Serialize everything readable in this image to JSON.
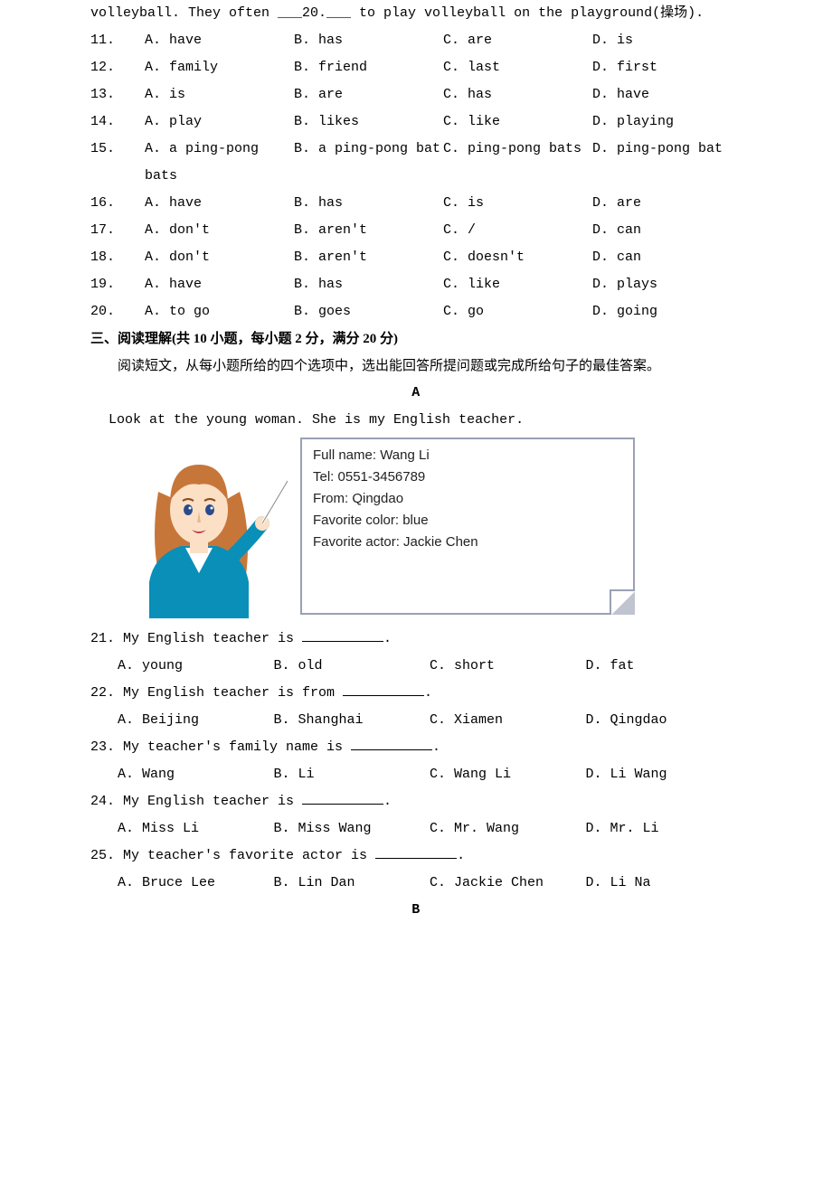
{
  "passage_line": "volleyball. They often ___20.___ to play volleyball on the playground(操场).",
  "cloze": [
    {
      "n": "11.",
      "a": "A. have",
      "b": "B. has",
      "c": "C. are",
      "d": "D. is"
    },
    {
      "n": "12.",
      "a": "A. family",
      "b": "B. friend",
      "c": "C. last",
      "d": "D. first"
    },
    {
      "n": "13.",
      "a": "A. is",
      "b": "B. are",
      "c": "C. has",
      "d": "D. have"
    },
    {
      "n": "14.",
      "a": "A. play",
      "b": "B. likes",
      "c": "C. like",
      "d": "D. playing"
    },
    {
      "n": "15.",
      "a": "A. a ping-pong bats",
      "b": "B. a ping-pong bat",
      "c": "C. ping-pong bats",
      "d": "D. ping-pong bat"
    },
    {
      "n": "16.",
      "a": "A. have",
      "b": "B. has",
      "c": "C. is",
      "d": "D. are"
    },
    {
      "n": "17.",
      "a": "A. don't",
      "b": "B. aren't",
      "c": "C. /",
      "d": "D. can"
    },
    {
      "n": "18.",
      "a": "A. don't",
      "b": "B. aren't",
      "c": "C. doesn't",
      "d": "D. can"
    },
    {
      "n": "19.",
      "a": "A. have",
      "b": "B. has",
      "c": "C. like",
      "d": "D. plays"
    },
    {
      "n": "20.",
      "a": "A. to go",
      "b": "B. goes",
      "c": "C. go",
      "d": "D. going"
    }
  ],
  "section3_heading": "三、阅读理解(共 10 小题，每小题 2 分，满分 20 分)",
  "section3_instruction": "阅读短文，从每小题所给的四个选项中，选出能回答所提问题或完成所给句子的最佳答案。",
  "letterA": "A",
  "readingA_intro": "Look at the young woman. She is my English teacher.",
  "card": {
    "full_name_label": "Full name:",
    "full_name": "Wang Li",
    "tel_label": "Tel:",
    "tel": "0551-3456789",
    "from_label": "From:",
    "from": "Qingdao",
    "fav_color_label": "Favorite color:",
    "fav_color": "blue",
    "fav_actor_label": "Favorite actor:",
    "fav_actor": "Jackie Chen"
  },
  "questionsA": [
    {
      "q": "21. My English teacher is ___________.",
      "a": "A. young",
      "b": "B. old",
      "c": "C. short",
      "d": "D. fat"
    },
    {
      "q": "22. My English teacher is from ___________.",
      "a": "A. Beijing",
      "b": "B. Shanghai",
      "c": "C. Xiamen",
      "d": "D. Qingdao"
    },
    {
      "q": "23. My teacher's family name is ___________.",
      "a": "A. Wang",
      "b": "B. Li",
      "c": "C. Wang Li",
      "d": "D. Li Wang"
    },
    {
      "q": "24. My English teacher is ___________.",
      "a": "A. Miss Li",
      "b": "B. Miss Wang",
      "c": "C. Mr. Wang",
      "d": "D. Mr. Li"
    },
    {
      "q": "25. My teacher's favorite actor is ___________.",
      "a": "A. Bruce Lee",
      "b": "B. Lin Dan",
      "c": "C. Jackie Chen",
      "d": "D. Li Na"
    }
  ],
  "letterB": "B",
  "colors": {
    "text": "#000000",
    "card_border": "#9aa0b4",
    "hair": "#c7763a",
    "skin": "#fbe0c6",
    "jacket": "#0a8fb8",
    "shirt": "#ffffff",
    "lips": "#c43b4a",
    "eyes": "#2a4b8d"
  }
}
